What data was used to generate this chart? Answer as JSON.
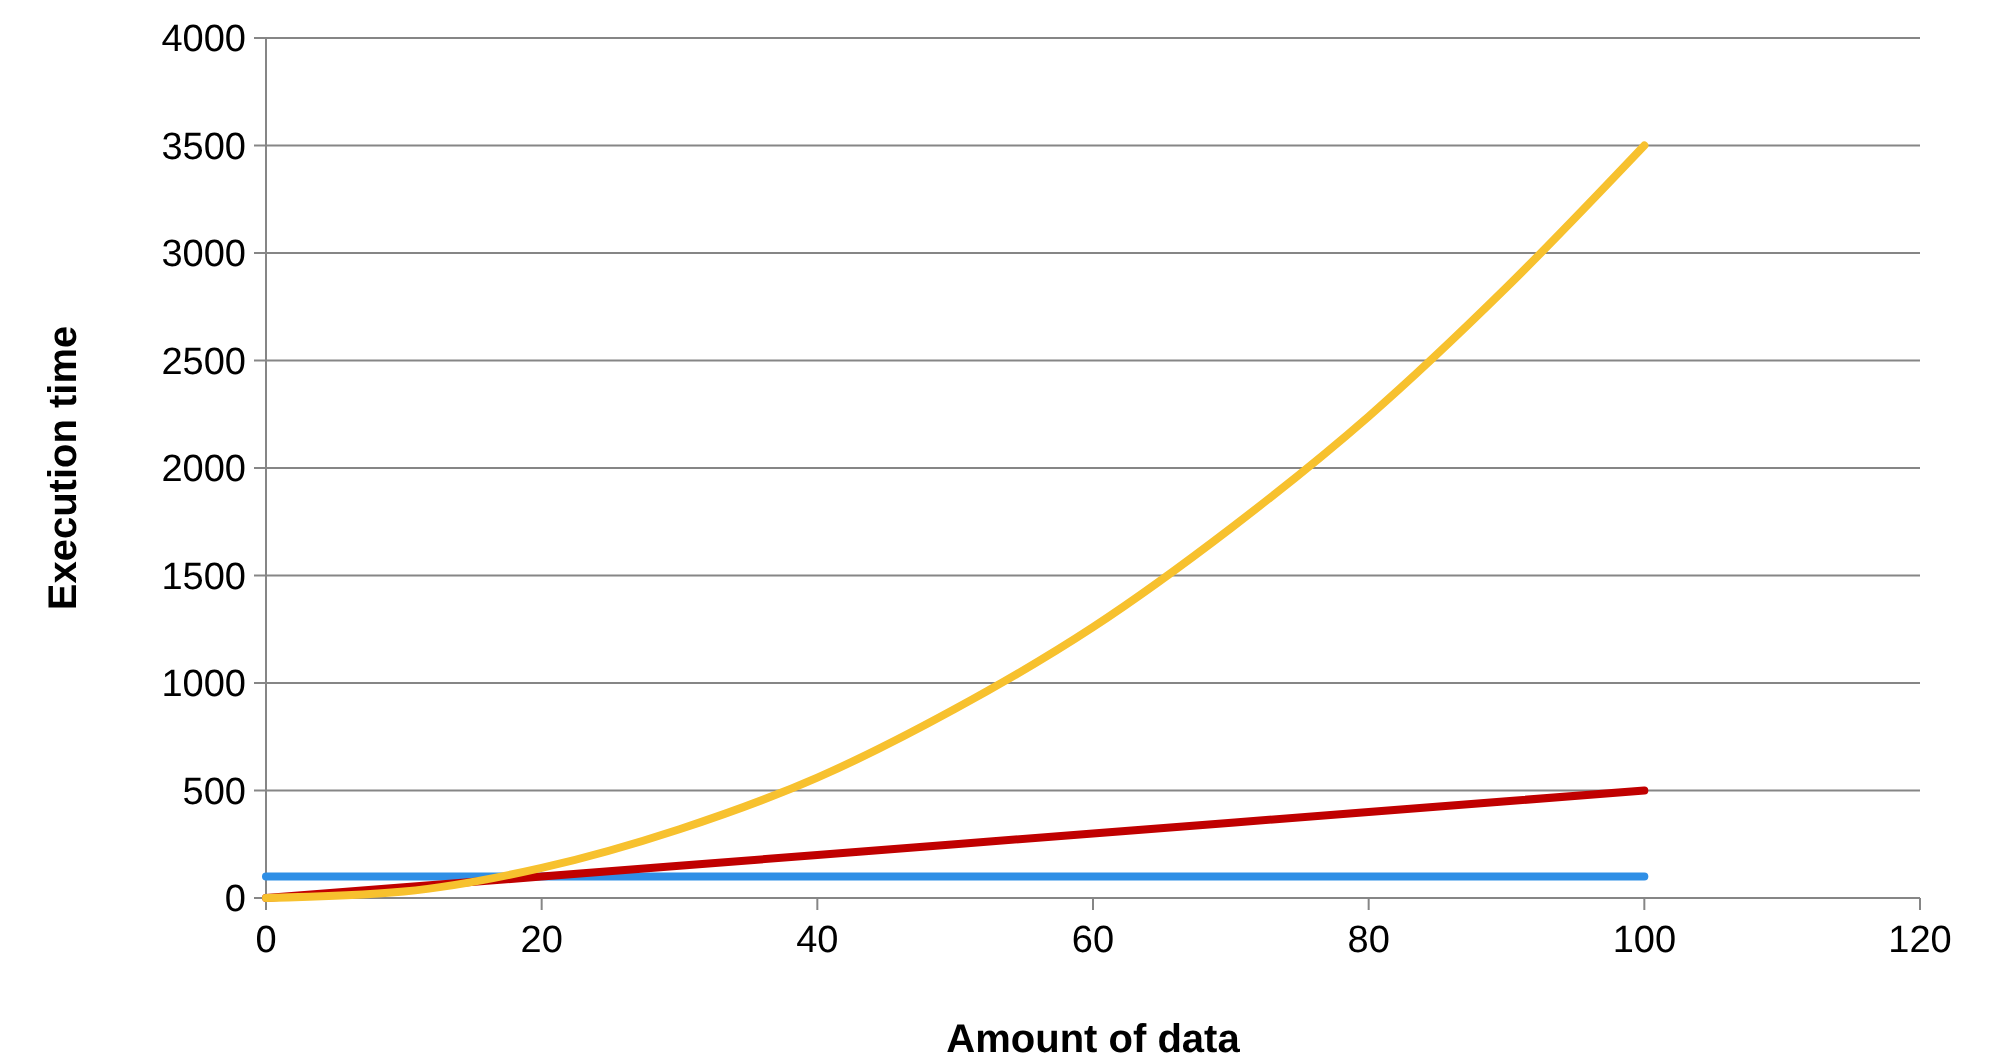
{
  "chart_data": {
    "type": "line",
    "xlabel": "Amount of data",
    "ylabel": "Execution time",
    "xlim": [
      0,
      120
    ],
    "xticks": [
      0,
      20,
      40,
      60,
      80,
      100,
      120
    ],
    "ylim": [
      0,
      4000
    ],
    "yticks": [
      0,
      500,
      1000,
      1500,
      2000,
      2500,
      3000,
      3500,
      4000
    ],
    "grid": "y",
    "marker": "none",
    "line_style": "solid",
    "series": [
      {
        "color": "#2f8fe6",
        "x": [
          0,
          100
        ],
        "values": [
          100,
          100
        ]
      },
      {
        "color": "#c00000",
        "x": [
          0,
          20,
          40,
          60,
          80,
          100
        ],
        "values": [
          0,
          100,
          200,
          300,
          400,
          500
        ]
      },
      {
        "color": "#f7c12e",
        "x": [
          0,
          10,
          20,
          30,
          40,
          50,
          60,
          70,
          80,
          90,
          100
        ],
        "values": [
          0,
          30,
          140,
          320,
          560,
          880,
          1260,
          1720,
          2240,
          2840,
          3500
        ]
      }
    ]
  }
}
